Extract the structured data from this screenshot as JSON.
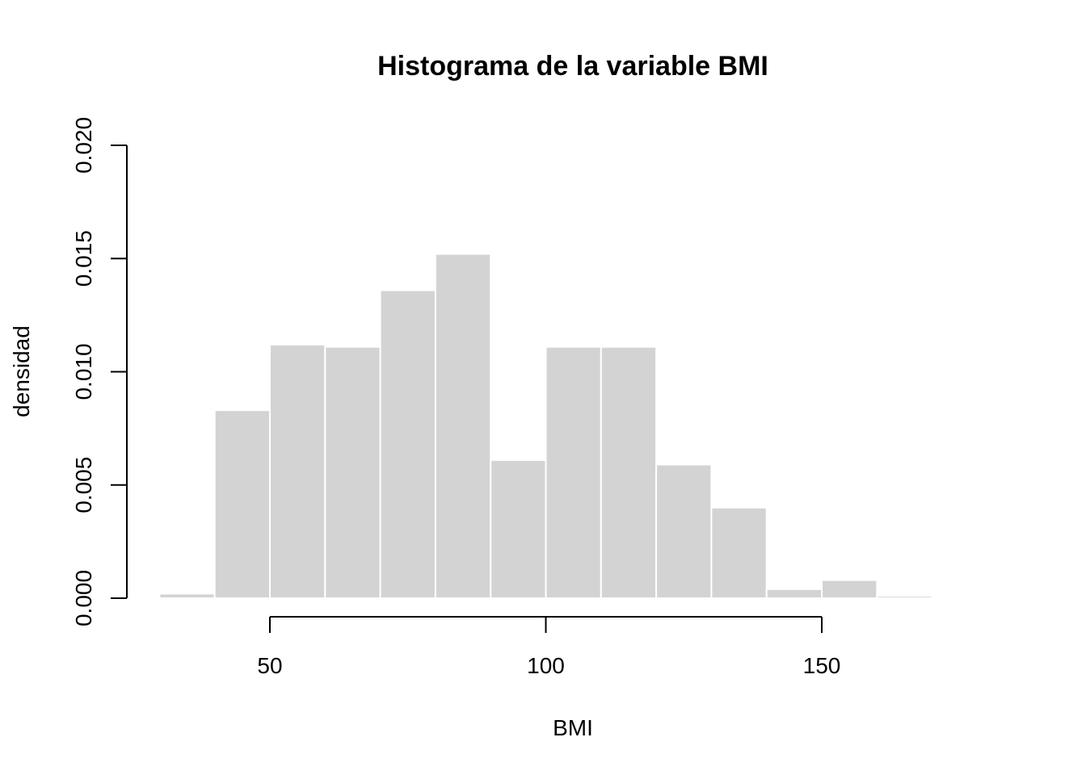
{
  "chart_data": {
    "type": "bar",
    "subtype": "histogram",
    "title": "Histograma de la variable BMI",
    "xlabel": "BMI",
    "ylabel": "densidad",
    "bin_edges": [
      30,
      40,
      50,
      60,
      70,
      80,
      90,
      100,
      110,
      120,
      130,
      140,
      150,
      160,
      170
    ],
    "values": [
      0.0002,
      0.0083,
      0.0112,
      0.0111,
      0.0136,
      0.0152,
      0.0061,
      0.0111,
      0.0111,
      0.0059,
      0.004,
      0.0004,
      0.0008,
      0.0001
    ],
    "xticks": [
      50,
      100,
      150
    ],
    "xtick_labels": [
      "50",
      "100",
      "150"
    ],
    "yticks": [
      0.0,
      0.005,
      0.01,
      0.015,
      0.02
    ],
    "ytick_labels": [
      "0.000",
      "0.005",
      "0.010",
      "0.015",
      "0.020"
    ],
    "ylim": [
      0,
      0.02
    ],
    "grid": false,
    "bar_color": "#d3d3d3",
    "bar_border_color": "#ffffff"
  }
}
